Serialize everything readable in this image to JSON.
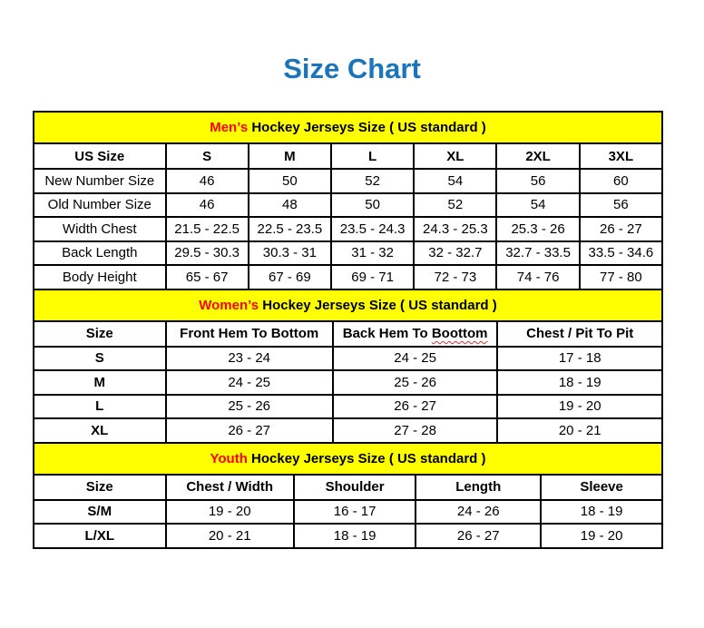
{
  "page": {
    "title": "Size Chart",
    "title_color": "#1b75bc",
    "banner_bg": "#ffff00",
    "accent_red": "#ff0000"
  },
  "sections": [
    {
      "id": "mens",
      "banner": {
        "highlight": "Men’s",
        "rest": " Hockey Jerseys Size ( US standard )"
      },
      "columns": [
        "US Size",
        "S",
        "M",
        "L",
        "XL",
        "2XL",
        "3XL"
      ],
      "bold_labels": false,
      "rows": [
        {
          "label": "New Number Size",
          "values": [
            "46",
            "50",
            "52",
            "54",
            "56",
            "60"
          ]
        },
        {
          "label": "Old Number Size",
          "values": [
            "46",
            "48",
            "50",
            "52",
            "54",
            "56"
          ]
        },
        {
          "label": "Width Chest",
          "values": [
            "21.5 - 22.5",
            "22.5 - 23.5",
            "23.5 - 24.3",
            "24.3 - 25.3",
            "25.3 - 26",
            "26 - 27"
          ]
        },
        {
          "label": "Back Length",
          "values": [
            "29.5 - 30.3",
            "30.3 - 31",
            "31 - 32",
            "32 - 32.7",
            "32.7 - 33.5",
            "33.5 - 34.6"
          ]
        },
        {
          "label": "Body Height",
          "values": [
            "65 - 67",
            "67 - 69",
            "69 - 71",
            "72 - 73",
            "74 - 76",
            "77 - 80"
          ]
        }
      ]
    },
    {
      "id": "womens",
      "banner": {
        "highlight": "Women’s",
        "rest": " Hockey Jerseys Size ( US standard )"
      },
      "columns": [
        "Size",
        "Front Hem To Bottom",
        "Back Hem To Boottom",
        "Chest / Pit To Pit"
      ],
      "misspelled_column": {
        "index": 2,
        "prefix": "Back Hem To ",
        "word": "Boottom"
      },
      "bold_labels": true,
      "rows": [
        {
          "label": "S",
          "values": [
            "23 - 24",
            "24 - 25",
            "17 - 18"
          ]
        },
        {
          "label": "M",
          "values": [
            "24 - 25",
            "25 - 26",
            "18 - 19"
          ]
        },
        {
          "label": "L",
          "values": [
            "25 - 26",
            "26 - 27",
            "19 - 20"
          ]
        },
        {
          "label": "XL",
          "values": [
            "26 - 27",
            "27 - 28",
            "20 - 21"
          ]
        }
      ]
    },
    {
      "id": "youth",
      "banner": {
        "highlight": "Youth",
        "rest": " Hockey Jerseys Size ( US standard )"
      },
      "columns": [
        "Size",
        "Chest / Width",
        "Shoulder",
        "Length",
        "Sleeve"
      ],
      "bold_labels": true,
      "rows": [
        {
          "label": "S/M",
          "values": [
            "19 - 20",
            "16 - 17",
            "24 - 26",
            "18 - 19"
          ]
        },
        {
          "label": "L/XL",
          "values": [
            "20 - 21",
            "18 - 19",
            "26 - 27",
            "19 - 20"
          ]
        }
      ]
    }
  ]
}
